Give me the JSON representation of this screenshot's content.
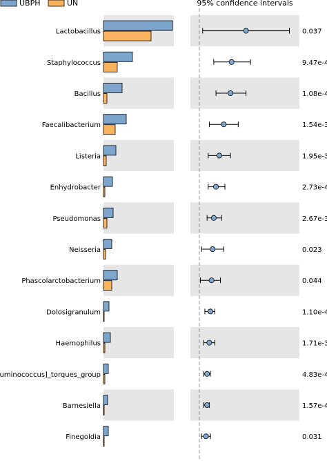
{
  "chart_data": {
    "type": "bar",
    "legend_placement": "top-left",
    "legend": [
      {
        "name": "UBPH",
        "color": "#7ea6cc"
      },
      {
        "name": "UN",
        "color": "#f9b25e"
      }
    ],
    "ci_title": "95% confidence intervals",
    "categories": [
      "Lactobacillus",
      "Staphylococcus",
      "Bacillus",
      "Faecalibacterium",
      "Listeria",
      "Enhydrobacter",
      "Pseudomonas",
      "Neisseria",
      "Phascolarctobacterium",
      "Dolosigranulum",
      "Haemophilus",
      "[Ruminococcus]_torques_group",
      "Barnesiella",
      "Finegoldia"
    ],
    "series": [
      {
        "name": "UBPH",
        "values": [
          100,
          42,
          27,
          33,
          18,
          13,
          14,
          12,
          20,
          8,
          10,
          7,
          6,
          7
        ]
      },
      {
        "name": "UN",
        "values": [
          69,
          20,
          5,
          17,
          4,
          2,
          5,
          3,
          12,
          1,
          2,
          2,
          1,
          1
        ]
      }
    ],
    "bar_xlim": [
      0,
      100
    ],
    "ci": {
      "center": [
        0.42,
        0.29,
        0.28,
        0.22,
        0.18,
        0.15,
        0.13,
        0.12,
        0.11,
        0.1,
        0.09,
        0.07,
        0.07,
        0.06
      ],
      "lower": [
        0.03,
        0.13,
        0.15,
        0.09,
        0.08,
        0.08,
        0.07,
        0.02,
        0.01,
        0.05,
        0.04,
        0.04,
        0.04,
        0.02
      ],
      "upper": [
        0.81,
        0.46,
        0.42,
        0.35,
        0.28,
        0.23,
        0.2,
        0.22,
        0.19,
        0.14,
        0.14,
        0.1,
        0.09,
        0.1
      ],
      "xlim": [
        -0.08,
        0.9
      ],
      "reference_line": 0
    },
    "p_values": [
      "0.037",
      "9.47e-4",
      "1.08e-4",
      "1.54e-3",
      "1.95e-3",
      "2.73e-4",
      "2.67e-3",
      "0.023",
      "0.044",
      "1.10e-4",
      "1.71e-3",
      "4.83e-4",
      "1.57e-4",
      "0.031"
    ],
    "colors": {
      "band": "#e6e6e6",
      "ubph": "#7ea6cc",
      "un": "#f9b25e",
      "point": "#7ea6cc",
      "reference_line": "#888888"
    }
  }
}
